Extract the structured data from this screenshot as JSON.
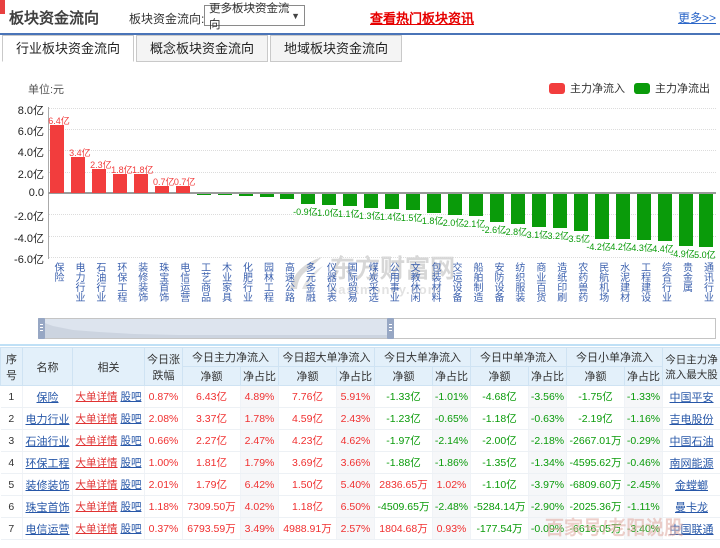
{
  "header": {
    "title": "板块资金流向",
    "filter_label": "板块资金流向:",
    "dropdown_value": "更多板块资金流向",
    "hot_link": "查看热门板块资讯",
    "more_link": "更多>>"
  },
  "tabs": [
    {
      "label": "行业板块资金流向",
      "active": true
    },
    {
      "label": "概念板块资金流向",
      "active": false
    },
    {
      "label": "地域板块资金流向",
      "active": false
    }
  ],
  "chart": {
    "unit": "单位:元",
    "legend": [
      {
        "label": "主力净流入",
        "color": "#f23d3d"
      },
      {
        "label": "主力净流出",
        "color": "#0a9b0a"
      }
    ],
    "y_axis": [
      {
        "v": 8,
        "label": "8.0亿"
      },
      {
        "v": 6,
        "label": "6.0亿"
      },
      {
        "v": 4,
        "label": "4.0亿"
      },
      {
        "v": 2,
        "label": "2.0亿"
      },
      {
        "v": 0,
        "label": "0.0"
      },
      {
        "v": -2,
        "label": "-2.0亿"
      },
      {
        "v": -4,
        "label": "-4.0亿"
      },
      {
        "v": -6,
        "label": "-6.0亿"
      }
    ]
  },
  "chart_data": {
    "type": "bar",
    "title": "行业板块资金流向",
    "ylabel": "单位:元",
    "ylim": [
      -6,
      8
    ],
    "grid": true,
    "series_colors": {
      "positive": "#f23d3d",
      "negative": "#0a9b0a"
    },
    "categories": [
      "保险",
      "电力行业",
      "石油行业",
      "环保工程",
      "装修装饰",
      "珠宝首饰",
      "电信运营",
      "工艺商品",
      "木业家具",
      "化肥行业",
      "园林工程",
      "高速公路",
      "多元金融",
      "仪器仪表",
      "国际贸易",
      "煤炭采选",
      "公用事业",
      "文教休闲",
      "包装材料",
      "交运设备",
      "船舶制造",
      "安防设备",
      "纺织服装",
      "商业百货",
      "造纸印刷",
      "农药兽药",
      "民航机场",
      "水泥建材",
      "工程建设",
      "综合行业",
      "贵金属",
      "通讯行业"
    ],
    "values": [
      6.4,
      3.4,
      2.3,
      1.8,
      1.8,
      0.7,
      0.7,
      -0.05,
      -0.1,
      -0.15,
      -0.25,
      -0.5,
      -0.9,
      -1.0,
      -1.1,
      -1.3,
      -1.4,
      -1.5,
      -1.8,
      -2.0,
      -2.1,
      -2.6,
      -2.8,
      -3.1,
      -3.2,
      -3.5,
      -4.2,
      -4.2,
      -4.3,
      -4.4,
      -4.9,
      -5.0
    ],
    "bar_labels": [
      "6.4亿",
      "3.4亿",
      "2.3亿",
      "1.8亿",
      "1.8亿",
      "0.7亿",
      "0.7亿",
      "",
      "",
      "",
      "",
      "",
      "-0.9亿",
      "-1.0亿",
      "-1.1亿",
      "-1.3亿",
      "-1.4亿",
      "-1.5亿",
      "-1.8亿",
      "-2.0亿",
      "-2.1亿",
      "-2.6亿",
      "-2.8亿",
      "-3.1亿",
      "-3.2亿",
      "-3.5亿",
      "-4.2亿",
      "-4.2亿",
      "-4.3亿",
      "-4.4亿",
      "-4.9亿",
      "-5.0亿"
    ]
  },
  "watermarks": {
    "center_logo": "东方财富网",
    "center_sub": "eastmoney.com",
    "corner": "百家号/老阳说股"
  },
  "table": {
    "headers": {
      "no": "序号",
      "name": "名称",
      "related": "相关",
      "change": "今日涨跌幅",
      "groups": [
        "今日主力净流入",
        "今日超大单净流入",
        "今日大单净流入",
        "今日中单净流入",
        "今日小单净流入"
      ],
      "sub": [
        "净额",
        "净占比"
      ],
      "top_stock": "今日主力净流入最大股"
    },
    "link_labels": [
      "大单详情",
      "股吧"
    ],
    "rows": [
      [
        "1",
        "保险",
        "0.87%",
        "6.43亿",
        "4.89%",
        "7.76亿",
        "5.91%",
        "-1.33亿",
        "-1.01%",
        "-4.68亿",
        "-3.56%",
        "-1.75亿",
        "-1.33%",
        "中国平安"
      ],
      [
        "2",
        "电力行业",
        "2.08%",
        "3.37亿",
        "1.78%",
        "4.59亿",
        "2.43%",
        "-1.23亿",
        "-0.65%",
        "-1.18亿",
        "-0.63%",
        "-2.19亿",
        "-1.16%",
        "吉电股份"
      ],
      [
        "3",
        "石油行业",
        "0.66%",
        "2.27亿",
        "2.47%",
        "4.23亿",
        "4.62%",
        "-1.97亿",
        "-2.14%",
        "-2.00亿",
        "-2.18%",
        "-2667.01万",
        "-0.29%",
        "中国石油"
      ],
      [
        "4",
        "环保工程",
        "1.00%",
        "1.81亿",
        "1.79%",
        "3.69亿",
        "3.66%",
        "-1.88亿",
        "-1.86%",
        "-1.35亿",
        "-1.34%",
        "-4595.62万",
        "-0.46%",
        "南网能源"
      ],
      [
        "5",
        "装修装饰",
        "2.01%",
        "1.79亿",
        "6.42%",
        "1.50亿",
        "5.40%",
        "2836.65万",
        "1.02%",
        "-1.10亿",
        "-3.97%",
        "-6809.60万",
        "-2.45%",
        "金螳螂"
      ],
      [
        "6",
        "珠宝首饰",
        "1.18%",
        "7309.50万",
        "4.02%",
        "1.18亿",
        "6.50%",
        "-4509.65万",
        "-2.48%",
        "-5284.14万",
        "-2.90%",
        "-2025.36万",
        "-1.11%",
        "曼卡龙"
      ],
      [
        "7",
        "电信运营",
        "0.37%",
        "6793.59万",
        "3.49%",
        "4988.91万",
        "2.57%",
        "1804.68万",
        "0.93%",
        "-177.54万",
        "-0.09%",
        "-6616.05万",
        "-3.40%",
        "中国联通"
      ]
    ]
  }
}
